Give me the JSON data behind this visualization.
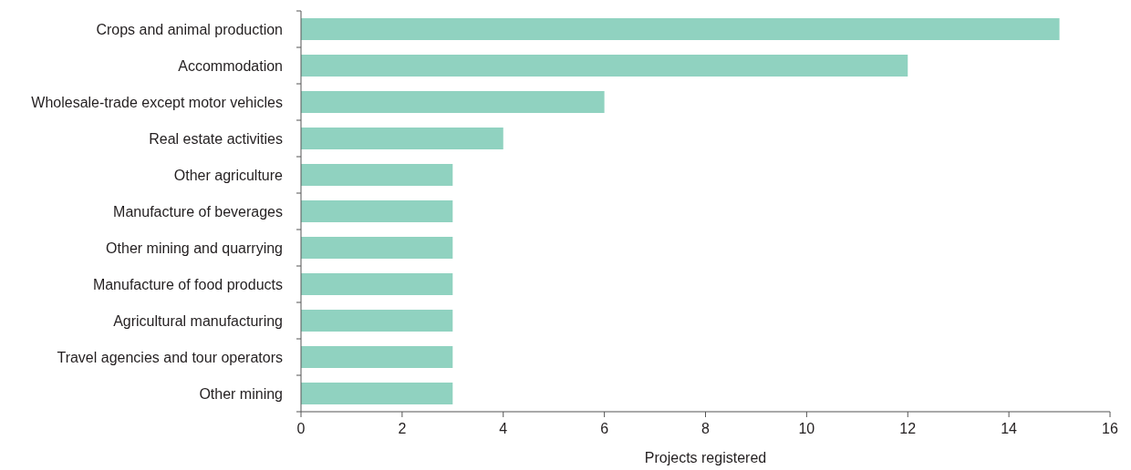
{
  "chart_data": {
    "type": "bar",
    "orientation": "horizontal",
    "xlabel": "Projects registered",
    "categories": [
      "Crops and animal production",
      "Accommodation",
      "Wholesale-trade except motor vehicles",
      "Real estate activities",
      "Other agriculture",
      "Manufacture of beverages",
      "Other mining and quarrying",
      "Manufacture of food products",
      "Agricultural manufacturing",
      "Travel agencies and tour operators",
      "Other mining"
    ],
    "values": [
      15,
      12,
      6,
      4,
      3,
      3,
      3,
      3,
      3,
      3,
      3
    ],
    "color": "#90d2c0",
    "xlim": [
      0,
      16
    ],
    "xticks": [
      0,
      2,
      4,
      6,
      8,
      10,
      12,
      14,
      16
    ],
    "grid": false
  }
}
